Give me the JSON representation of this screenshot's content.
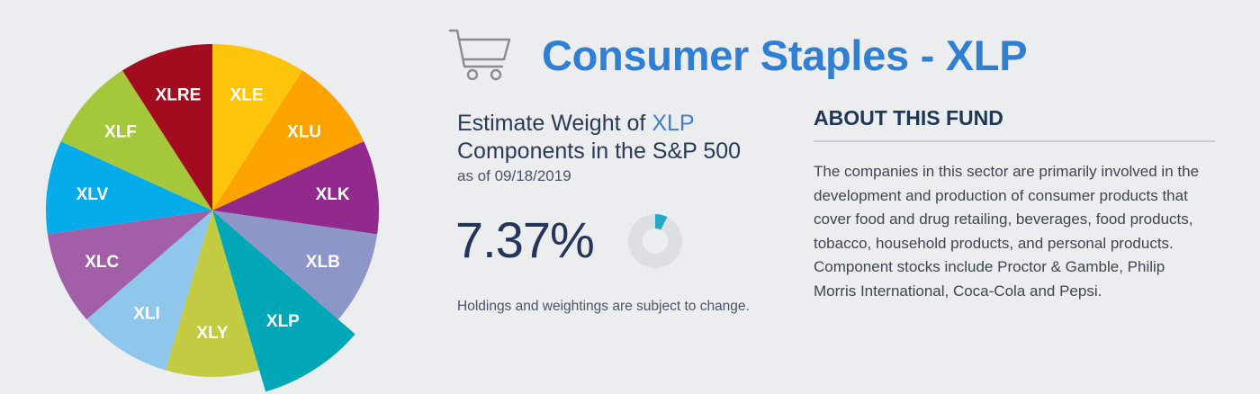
{
  "pie": {
    "highlight": "XLP",
    "slices": [
      {
        "label": "XLE",
        "color": "#fcc50c"
      },
      {
        "label": "XLU",
        "color": "#fca300"
      },
      {
        "label": "XLK",
        "color": "#912a8b"
      },
      {
        "label": "XLB",
        "color": "#8d96c8"
      },
      {
        "label": "XLP",
        "color": "#00a7b6"
      },
      {
        "label": "XLY",
        "color": "#c2cb41"
      },
      {
        "label": "XLI",
        "color": "#8fc6ec"
      },
      {
        "label": "XLC",
        "color": "#a25fa8"
      },
      {
        "label": "XLV",
        "color": "#06abea"
      },
      {
        "label": "XLF",
        "color": "#a4c83a"
      },
      {
        "label": "XLRE",
        "color": "#a30c1f"
      }
    ]
  },
  "header": {
    "icon": "shopping-cart-icon",
    "title": "Consumer Staples - XLP"
  },
  "weight": {
    "heading_prefix": "Estimate Weight of",
    "ticker": "XLP",
    "heading_suffix": "Components in the S&P 500",
    "as_of": "as of 09/18/2019",
    "value_label": "7.37%",
    "value_fraction": 0.0737,
    "accent_color": "#25a9c2",
    "track_color": "#dcdfe2",
    "disclaimer": "Holdings and weightings are subject to change."
  },
  "about": {
    "title": "ABOUT THIS FUND",
    "text": "The companies in this sector are primarily involved in the development and production of consumer products that cover food and drug retailing, beverages, food products, tobacco, household products, and personal products. Component stocks include Proctor & Gamble, Philip Morris International, Coca-Cola and Pepsi."
  },
  "colors": {
    "title_blue": "#2f7fd4",
    "navy": "#1f3656",
    "background": "#ebedee"
  }
}
